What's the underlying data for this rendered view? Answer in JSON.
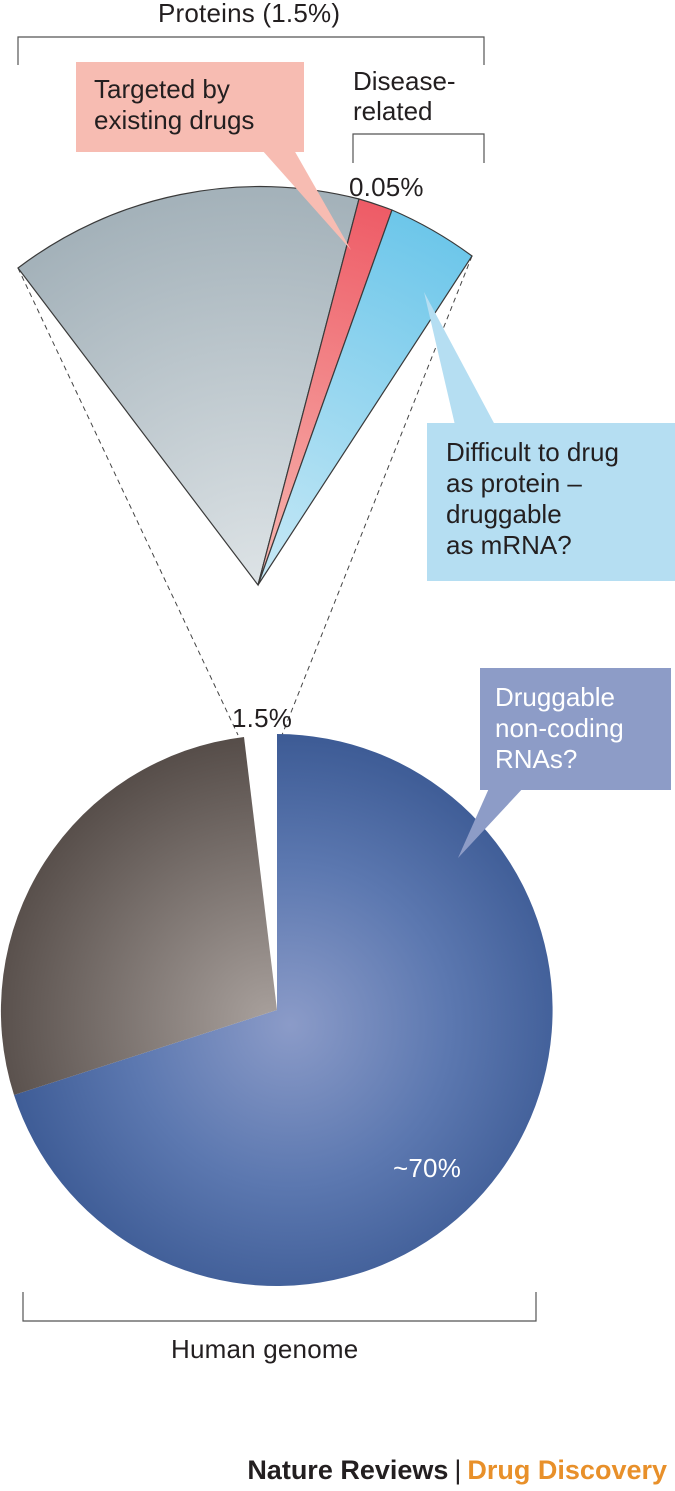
{
  "labels": {
    "proteins_bracket": "Proteins (1.5%)",
    "disease_bracket": "Disease-\nrelated",
    "small_pct": "0.05%",
    "slice_pct": "1.5%",
    "big_pct": "~70%",
    "genome_bracket": "Human genome"
  },
  "callouts": {
    "targeted": "Targeted by\nexisting drugs",
    "difficult": "Difficult to drug\nas protein –\ndruggable\nas mRNA?",
    "noncoding": "Druggable\nnon-coding\nRNAs?"
  },
  "credit": {
    "journal": "Nature Reviews",
    "separator": "|",
    "section": "Drug Discovery"
  },
  "colors": {
    "genome_blue": "#3f5d97",
    "genome_grey": "#6b625e",
    "protein_grey": "#b3bec5",
    "targeted_red": "#ef6b73",
    "difficult_blue": "#7ccbea",
    "callout_pink": "#f7bcb2",
    "callout_lightblue": "#b5def2",
    "callout_purple": "#8d9cc7",
    "accent_orange": "#e8902a"
  }
}
